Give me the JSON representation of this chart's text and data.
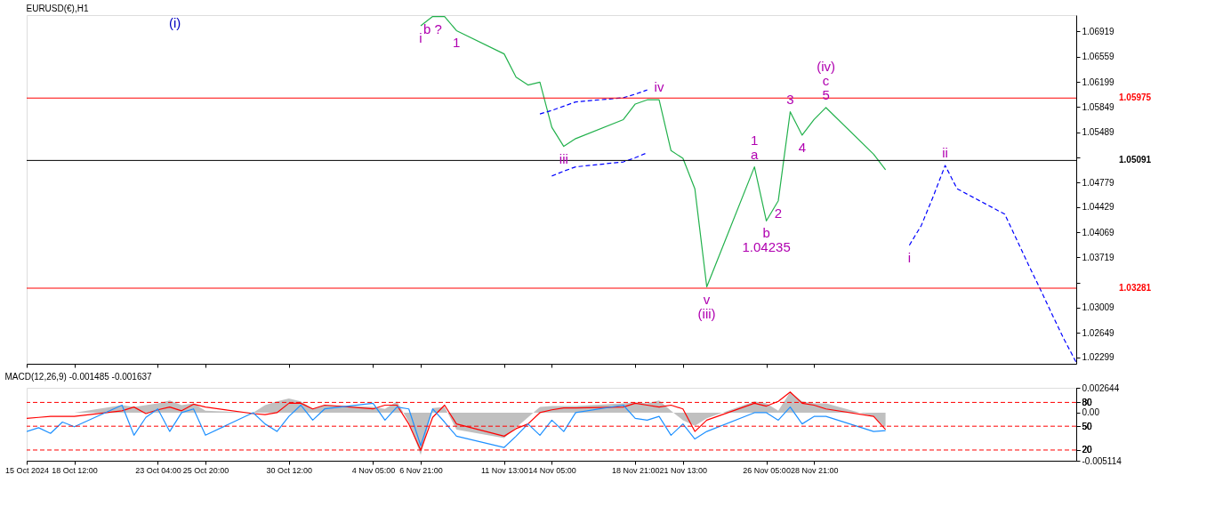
{
  "chart_data": [
    {
      "type": "line",
      "title": "EURUSD(€),H1",
      "xlim": [
        "2024-10-15T20:00",
        "2024-12-13T13:00"
      ],
      "ylim": [
        1.0221,
        1.0715
      ],
      "xticks": [
        {
          "value": "2024-10-15T20:00",
          "label": null
        },
        {
          "value": "2024-10-18T12:00",
          "label": null
        },
        {
          "value": "2024-10-23T04:00",
          "label": null
        },
        {
          "value": "2024-10-25T20:00",
          "label": null
        },
        {
          "value": "2024-10-30T12:00",
          "label": null
        },
        {
          "value": "2024-11-04T05:00",
          "label": null
        },
        {
          "value": "2024-11-06T21:00",
          "label": null
        },
        {
          "value": "2024-11-11T13:00",
          "label": null
        },
        {
          "value": "2024-11-14T05:00",
          "label": null
        },
        {
          "value": "2024-11-18T21:00",
          "label": null
        },
        {
          "value": "2024-11-21T13:00",
          "label": null
        },
        {
          "value": "2024-11-26T05:00",
          "label": null
        },
        {
          "value": "2024-11-28T21:00",
          "label": null
        }
      ],
      "yticks": [
        1.06919,
        1.06559,
        1.06199,
        1.05849,
        1.05489,
        {
          "value": 1.05129,
          "label": null
        },
        1.04779,
        1.04429,
        1.04069,
        1.03719,
        {
          "value": 1.03359,
          "label": null
        },
        1.03009,
        1.02649,
        1.02299
      ],
      "tick_labels": "y",
      "grid": false,
      "series": [
        {
          "type": "line",
          "color": "#22b14c",
          "x": [
            "2024-11-06T21:00",
            "2024-11-07T13:00",
            "2024-11-08T05:00",
            "2024-11-08T21:00",
            "2024-11-11T13:00",
            "2024-11-12T05:00",
            "2024-11-12T21:00",
            "2024-11-13T13:00",
            "2024-11-14T05:00",
            "2024-11-14T21:00",
            "2024-11-15T13:00",
            "2024-11-18T05:00",
            "2024-11-18T21:00",
            "2024-11-19T13:00",
            "2024-11-20T05:00",
            "2024-11-20T21:00",
            "2024-11-21T13:00",
            "2024-11-22T05:00",
            "2024-11-22T21:00",
            "2024-11-25T13:00",
            "2024-11-26T05:00",
            "2024-11-26T21:00",
            "2024-11-27T13:00",
            "2024-11-28T05:00",
            "2024-11-28T21:00",
            "2024-11-29T13:00",
            "2024-12-02T05:00",
            "2024-12-02T21:00"
          ],
          "values": [
            1.07,
            1.0713,
            1.0713,
            1.0693,
            1.066,
            1.0627,
            1.0616,
            1.062,
            1.0556,
            1.0529,
            1.054,
            1.0567,
            1.0589,
            1.0595,
            1.0595,
            1.0523,
            1.0512,
            1.0469,
            1.033,
            1.05,
            1.04235,
            1.0452,
            1.0578,
            1.0545,
            1.0567,
            1.0584,
            1.0518,
            1.0496
          ]
        },
        {
          "type": "line",
          "color": "#0000ff",
          "line_style": "dashed",
          "x": [
            "2024-12-04T05:00",
            "2024-12-04T21:00",
            "2024-12-05T13:00",
            "2024-12-06T05:00",
            "2024-12-06T21:00",
            "2024-12-09T13:00",
            "2024-12-10T05:00",
            "2024-12-10T21:00",
            "2024-12-11T13:00",
            "2024-12-12T05:00",
            "2024-12-12T21:00",
            "2024-12-13T13:00"
          ],
          "values": [
            1.0389,
            1.0417,
            1.0458,
            1.0502,
            1.0469,
            1.0433,
            1.0397,
            1.0361,
            1.0326,
            1.029,
            1.0255,
            1.0223
          ]
        },
        {
          "type": "line",
          "color": "#0000ff",
          "line_style": "dashed",
          "x": [
            "2024-11-13T13:00",
            "2024-11-14T05:00",
            "2024-11-14T21:00",
            "2024-11-15T13:00",
            "2024-11-18T05:00",
            "2024-11-18T21:00",
            "2024-11-19T13:00"
          ],
          "values": [
            1.0575,
            1.058,
            1.0586,
            1.0592,
            1.0598,
            1.0603,
            1.0609
          ]
        },
        {
          "type": "line",
          "color": "#0000ff",
          "line_style": "dashed",
          "x": [
            "2024-11-14T05:00",
            "2024-11-14T21:00",
            "2024-11-15T13:00",
            "2024-11-18T05:00",
            "2024-11-18T21:00",
            "2024-11-19T13:00"
          ],
          "values": [
            1.0487,
            1.0494,
            1.05,
            1.0507,
            1.0513,
            1.052
          ]
        }
      ],
      "ref_lines": [
        {
          "axis": "y",
          "value": 1.05975,
          "label": "1.05975",
          "color": "#ff0000"
        },
        {
          "axis": "y",
          "value": 1.03281,
          "label": "1.03281",
          "color": "#ff0000"
        },
        {
          "axis": "y",
          "value": 1.05091,
          "label": "1.05091",
          "color": "#000000"
        }
      ],
      "annotations": [
        "(i)",
        {
          "text": "i",
          "x": "2024-11-06T21:00",
          "y": 1.07
        },
        {
          "text": "b ?",
          "x": "2024-11-07T13:00",
          "y": 1.0713
        },
        {
          "text": "1",
          "x": "2024-11-08T21:00",
          "y": 1.0693
        },
        {
          "text": "iii",
          "x": "2024-11-14T21:00",
          "y": 1.0529
        },
        {
          "text": "iv",
          "x": "2024-11-20T05:00",
          "y": 1.0595
        },
        {
          "text": "v",
          "x": "2024-11-22T21:00",
          "y": 1.033
        },
        {
          "text": "(iii)",
          "x": "2024-11-22T21:00",
          "y": 1.033
        },
        {
          "text": "a",
          "x": "2024-11-25T13:00",
          "y": 1.05
        },
        {
          "text": "1",
          "x": "2024-11-25T13:00",
          "y": 1.05
        },
        {
          "text": "b",
          "x": "2024-11-26T05:00",
          "y": 1.04235
        },
        {
          "text": "1.04235",
          "x": "2024-11-26T05:00",
          "y": 1.04235
        },
        {
          "text": "2",
          "x": "2024-11-26T21:00",
          "y": 1.0452
        },
        {
          "text": "3",
          "x": "2024-11-27T13:00",
          "y": 1.0578
        },
        {
          "text": "4",
          "x": "2024-11-28T05:00",
          "y": 1.0545
        },
        {
          "text": "5",
          "x": "2024-11-29T13:00",
          "y": 1.0584
        },
        {
          "text": "c",
          "x": "2024-11-29T13:00",
          "y": 1.0584
        },
        {
          "text": "(iv)",
          "x": "2024-11-29T13:00",
          "y": 1.0584
        },
        {
          "text": "i",
          "x": "2024-12-04T05:00",
          "y": 1.0389
        },
        {
          "text": "ii",
          "x": "2024-12-06T05:00",
          "y": 1.0502
        }
      ]
    },
    {
      "type": "line",
      "title": "MACD(12,26,9) -0.001485 -0.001637",
      "xlim": [
        "2024-10-15T20:00",
        "2024-12-13T13:00"
      ],
      "ylim": [
        -0.005114,
        0.002644
      ],
      "xticks": [
        {
          "value": "2024-10-15T20:00",
          "label": "15 Oct 2024"
        },
        {
          "value": "2024-10-18T12:00",
          "label": "18 Oct 12:00"
        },
        {
          "value": "2024-10-23T04:00",
          "label": "23 Oct 04:00"
        },
        {
          "value": "2024-10-25T20:00",
          "label": "25 Oct 20:00"
        },
        {
          "value": "2024-10-30T12:00",
          "label": "30 Oct 12:00"
        },
        {
          "value": "2024-11-04T05:00",
          "label": "4 Nov 05:00"
        },
        {
          "value": "2024-11-06T21:00",
          "label": "6 Nov 21:00"
        },
        {
          "value": "2024-11-11T13:00",
          "label": "11 Nov 13:00"
        },
        {
          "value": "2024-11-14T05:00",
          "label": "14 Nov 05:00"
        },
        {
          "value": "2024-11-18T21:00",
          "label": "18 Nov 21:00"
        },
        {
          "value": "2024-11-21T13:00",
          "label": "21 Nov 13:00"
        },
        {
          "value": "2024-11-26T05:00",
          "label": "26 Nov 05:00"
        },
        {
          "value": "2024-11-28T21:00",
          "label": "28 Nov 21:00"
        }
      ],
      "yticks": [
        0.002644,
        {
          "value": 0,
          "label": "0.00"
        },
        -0.005114
      ],
      "grid": false,
      "x": [
        "2024-10-15T20:00",
        "2024-10-16T12:00",
        "2024-10-17T04:00",
        "2024-10-17T20:00",
        "2024-10-18T12:00",
        "2024-10-21T04:00",
        "2024-10-21T20:00",
        "2024-10-22T12:00",
        "2024-10-23T04:00",
        "2024-10-23T20:00",
        "2024-10-24T12:00",
        "2024-10-25T04:00",
        "2024-10-25T20:00",
        "2024-10-28T12:00",
        "2024-10-29T04:00",
        "2024-10-29T20:00",
        "2024-10-30T12:00",
        "2024-10-31T04:00",
        "2024-10-31T20:00",
        "2024-11-01T12:00",
        "2024-11-04T05:00",
        "2024-11-04T21:00",
        "2024-11-05T13:00",
        "2024-11-06T05:00",
        "2024-11-06T21:00",
        "2024-11-07T13:00",
        "2024-11-08T05:00",
        "2024-11-08T21:00",
        "2024-11-11T13:00",
        "2024-11-12T05:00",
        "2024-11-12T21:00",
        "2024-11-13T13:00",
        "2024-11-14T05:00",
        "2024-11-14T21:00",
        "2024-11-15T13:00",
        "2024-11-18T05:00",
        "2024-11-18T21:00",
        "2024-11-19T13:00",
        "2024-11-20T05:00",
        "2024-11-20T21:00",
        "2024-11-21T13:00",
        "2024-11-22T05:00",
        "2024-11-22T21:00",
        "2024-11-25T13:00",
        "2024-11-26T05:00",
        "2024-11-26T21:00",
        "2024-11-27T13:00",
        "2024-11-28T05:00",
        "2024-11-28T21:00",
        "2024-11-29T13:00",
        "2024-12-02T05:00",
        "2024-12-02T21:00"
      ],
      "series": [
        {
          "type": "area",
          "color": "#c0c0c0",
          "values": [
            0,
            0,
            0,
            0,
            0,
            0.0008,
            0.0006,
            0.0008,
            0.001,
            0.0013,
            0.0008,
            0.001,
            0.0002,
            0,
            0.0008,
            0.0012,
            0.0015,
            0.0012,
            0.0004,
            0.0008,
            0.0006,
            0.0004,
            0.0012,
            -0.001,
            -0.0045,
            0.0005,
            0.0006,
            -0.0018,
            -0.0027,
            -0.0016,
            -0.0005,
            0.0006,
            0.0007,
            0.0007,
            0.0007,
            0.001,
            0.0011,
            0.001,
            0.0013,
            0.0002,
            -0.0008,
            -0.0014,
            -0.0006,
            0.0012,
            0.001,
            0.0002,
            0.0022,
            0.0012,
            0.001,
            0.001,
            -0.0004,
            -0.0016
          ]
        },
        {
          "type": "line",
          "color": "#ff0000",
          "values": [
            -0.0006,
            -0.0005,
            -0.0004,
            -0.0004,
            -0.0004,
            0.0002,
            0.0006,
            -0.0001,
            0.0003,
            0.0006,
            0.0002,
            0.0009,
            0.0006,
            -0.0001,
            -0.0002,
            0,
            0.001,
            0.001,
            0.0004,
            0.0008,
            0.0004,
            0.0008,
            0.0008,
            -0.0012,
            -0.004,
            -0.0005,
            0.0008,
            -0.0012,
            -0.0025,
            -0.0017,
            -0.0012,
            0,
            0.0003,
            0.0005,
            0.0005,
            0.0006,
            0.001,
            0.0008,
            0.0006,
            0.0008,
            0.0004,
            -0.002,
            -0.0008,
            0.001,
            0.0007,
            0.0012,
            0.0022,
            0.001,
            0.0008,
            0.0004,
            -0.0004,
            -0.0018
          ]
        },
        {
          "type": "line",
          "color": "#1e90ff",
          "values": [
            -0.002,
            -0.0016,
            -0.0022,
            -0.001,
            -0.0015,
            0.0008,
            -0.0024,
            -0.0005,
            0.0004,
            -0.002,
            0,
            0.0004,
            -0.0024,
            0,
            -0.0012,
            -0.002,
            -0.0004,
            0.0008,
            -0.0008,
            0.0004,
            0.001,
            -0.0008,
            0.0006,
            0.0004,
            -0.0035,
            0.0004,
            -0.001,
            -0.0025,
            -0.0037,
            -0.0025,
            -0.0012,
            -0.0024,
            -0.0008,
            -0.002,
            0,
            0.0008,
            -0.0006,
            -0.0008,
            -0.0004,
            -0.0024,
            -0.0012,
            -0.0028,
            -0.002,
            0,
            0,
            -0.0008,
            0.0006,
            -0.0012,
            -0.0004,
            -0.0004,
            -0.002,
            -0.0019
          ]
        }
      ],
      "y2lim": [
        6.5,
        98.4
      ],
      "y2ticks": [
        80,
        50,
        20
      ],
      "ref_lines": [
        {
          "axis": "y2",
          "value": 80,
          "color": "#ff0000",
          "line_style": "dashed"
        },
        {
          "axis": "y2",
          "value": 50,
          "color": "#ff0000",
          "line_style": "dashed"
        },
        {
          "axis": "y2",
          "value": 20,
          "color": "#ff0000",
          "line_style": "dashed"
        }
      ]
    }
  ]
}
